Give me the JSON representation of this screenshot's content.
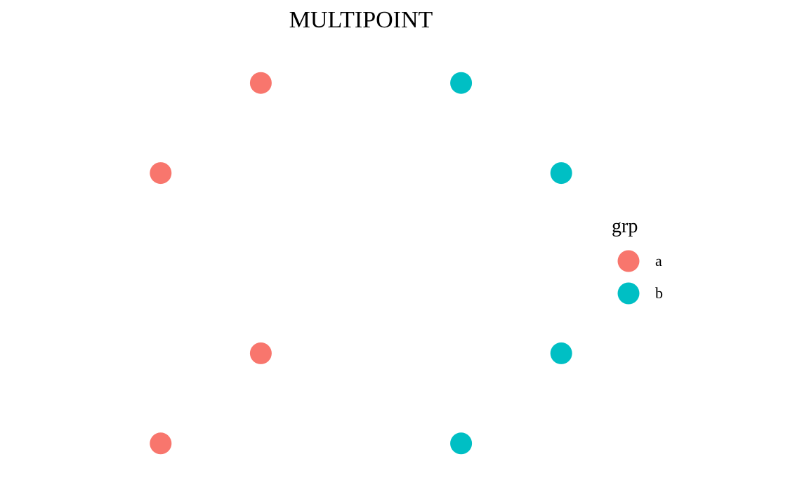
{
  "chart_data": {
    "type": "scatter",
    "title": "MULTIPOINT",
    "xlabel": "",
    "ylabel": "",
    "grid": false,
    "axes_visible": false,
    "xlim": [
      0.5,
      5.5
    ],
    "ylim": [
      0.5,
      5.5
    ],
    "legend": {
      "title": "grp",
      "placement": "right"
    },
    "series": [
      {
        "name": "a",
        "color": "#F8766D",
        "points": [
          {
            "x": 2,
            "y": 5
          },
          {
            "x": 1,
            "y": 4
          },
          {
            "x": 2,
            "y": 2
          },
          {
            "x": 1,
            "y": 1
          }
        ]
      },
      {
        "name": "b",
        "color": "#00BFC4",
        "points": [
          {
            "x": 4,
            "y": 5
          },
          {
            "x": 5,
            "y": 4
          },
          {
            "x": 5,
            "y": 2
          },
          {
            "x": 4,
            "y": 1
          }
        ]
      }
    ]
  }
}
